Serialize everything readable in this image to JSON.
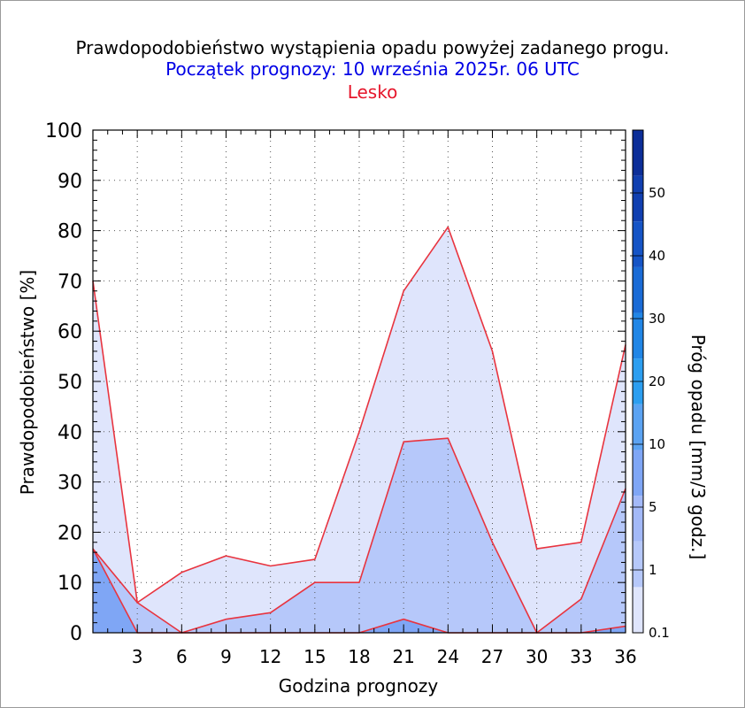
{
  "header": {
    "title": "Prawdopodobieństwo wystąpienia opadu powyżej zadanego progu.",
    "subtitle": "Początek prognozy: 10 września 2025r. 06 UTC",
    "location": "Lesko"
  },
  "chart_data": {
    "type": "area",
    "xlabel": "Godzina prognozy",
    "ylabel": "Prawdopodobieństwo [%]",
    "x": [
      0,
      3,
      6,
      9,
      12,
      15,
      18,
      21,
      24,
      27,
      30,
      33,
      36
    ],
    "x_tick_labels": [
      "3",
      "6",
      "9",
      "12",
      "15",
      "18",
      "21",
      "24",
      "27",
      "30",
      "33",
      "36"
    ],
    "xlim": [
      0,
      36
    ],
    "ylim": [
      0,
      100
    ],
    "y_ticks": [
      0,
      10,
      20,
      30,
      40,
      50,
      60,
      70,
      80,
      90,
      100
    ],
    "grid": true,
    "series": [
      {
        "threshold": "0.1",
        "color": "#dfe5fc",
        "values": [
          70,
          6,
          12,
          15.3,
          13.3,
          14.6,
          40,
          68,
          80.7,
          56,
          16.7,
          18,
          57.3
        ]
      },
      {
        "threshold": "1",
        "color": "#b6c8fa",
        "values": [
          16.7,
          6,
          0,
          2.7,
          4,
          10,
          10,
          38,
          38.7,
          18,
          0,
          6.7,
          28.7
        ]
      },
      {
        "threshold": "5",
        "color": "#7fa6f5",
        "values": [
          16.7,
          0,
          0,
          0,
          0,
          0,
          0,
          2.7,
          0,
          0,
          0,
          0,
          1.3
        ]
      }
    ],
    "colorbar": {
      "label": "Próg opadu [mm/3 godz.]",
      "tick_labels": [
        "0.1",
        "1",
        "5",
        "10",
        "20",
        "30",
        "40",
        "50"
      ],
      "colors": [
        "#dfe5fc",
        "#b6c8fa",
        "#a3b9f8",
        "#7fa6f5",
        "#5ba3f2",
        "#2c9ef0",
        "#2186e6",
        "#1a6bd6",
        "#1554c6",
        "#103fb0",
        "#0c2e98"
      ]
    },
    "line_color": "#e8343f"
  }
}
